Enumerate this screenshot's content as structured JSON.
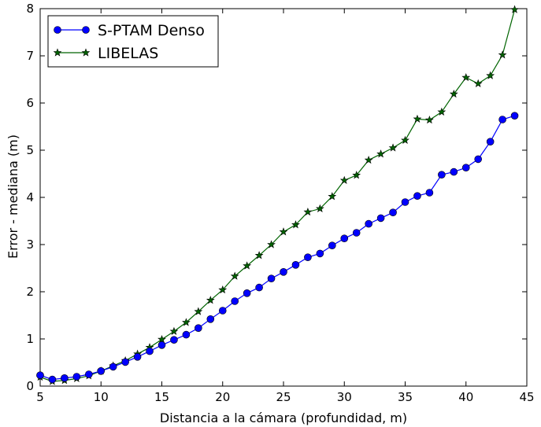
{
  "chart_data": {
    "type": "line",
    "xlabel": "Distancia a la cámara (profundidad, m)",
    "ylabel": "Error - mediana (m)",
    "xlim": [
      5,
      45
    ],
    "ylim": [
      0,
      8
    ],
    "xticks": [
      5,
      10,
      15,
      20,
      25,
      30,
      35,
      40,
      45
    ],
    "yticks": [
      0,
      1,
      2,
      3,
      4,
      5,
      6,
      7,
      8
    ],
    "grid": false,
    "legend_position": "top-left",
    "x": [
      5,
      6,
      7,
      8,
      9,
      10,
      11,
      12,
      13,
      14,
      15,
      16,
      17,
      18,
      19,
      20,
      21,
      22,
      23,
      24,
      25,
      26,
      27,
      28,
      29,
      30,
      31,
      32,
      33,
      34,
      35,
      36,
      37,
      38,
      39,
      40,
      41,
      42,
      43,
      44
    ],
    "series": [
      {
        "name": "S-PTAM Denso",
        "color": "#0000ff",
        "marker": "circle",
        "values": [
          0.23,
          0.14,
          0.17,
          0.2,
          0.25,
          0.32,
          0.41,
          0.51,
          0.62,
          0.74,
          0.87,
          0.98,
          1.09,
          1.23,
          1.42,
          1.6,
          1.8,
          1.97,
          2.09,
          2.28,
          2.42,
          2.57,
          2.73,
          2.81,
          2.98,
          3.13,
          3.25,
          3.44,
          3.56,
          3.68,
          3.9,
          4.03,
          4.1,
          4.48,
          4.54,
          4.63,
          4.81,
          5.18,
          5.65,
          5.73
        ]
      },
      {
        "name": "LIBELAS",
        "color": "#006400",
        "marker": "star",
        "values": [
          0.19,
          0.1,
          0.12,
          0.16,
          0.22,
          0.32,
          0.43,
          0.54,
          0.68,
          0.82,
          0.99,
          1.16,
          1.35,
          1.58,
          1.82,
          2.04,
          2.33,
          2.55,
          2.77,
          3.0,
          3.27,
          3.42,
          3.69,
          3.76,
          4.02,
          4.36,
          4.47,
          4.79,
          4.92,
          5.05,
          5.21,
          5.66,
          5.64,
          5.81,
          6.19,
          6.54,
          6.41,
          6.58,
          7.02,
          7.98
        ]
      }
    ]
  }
}
